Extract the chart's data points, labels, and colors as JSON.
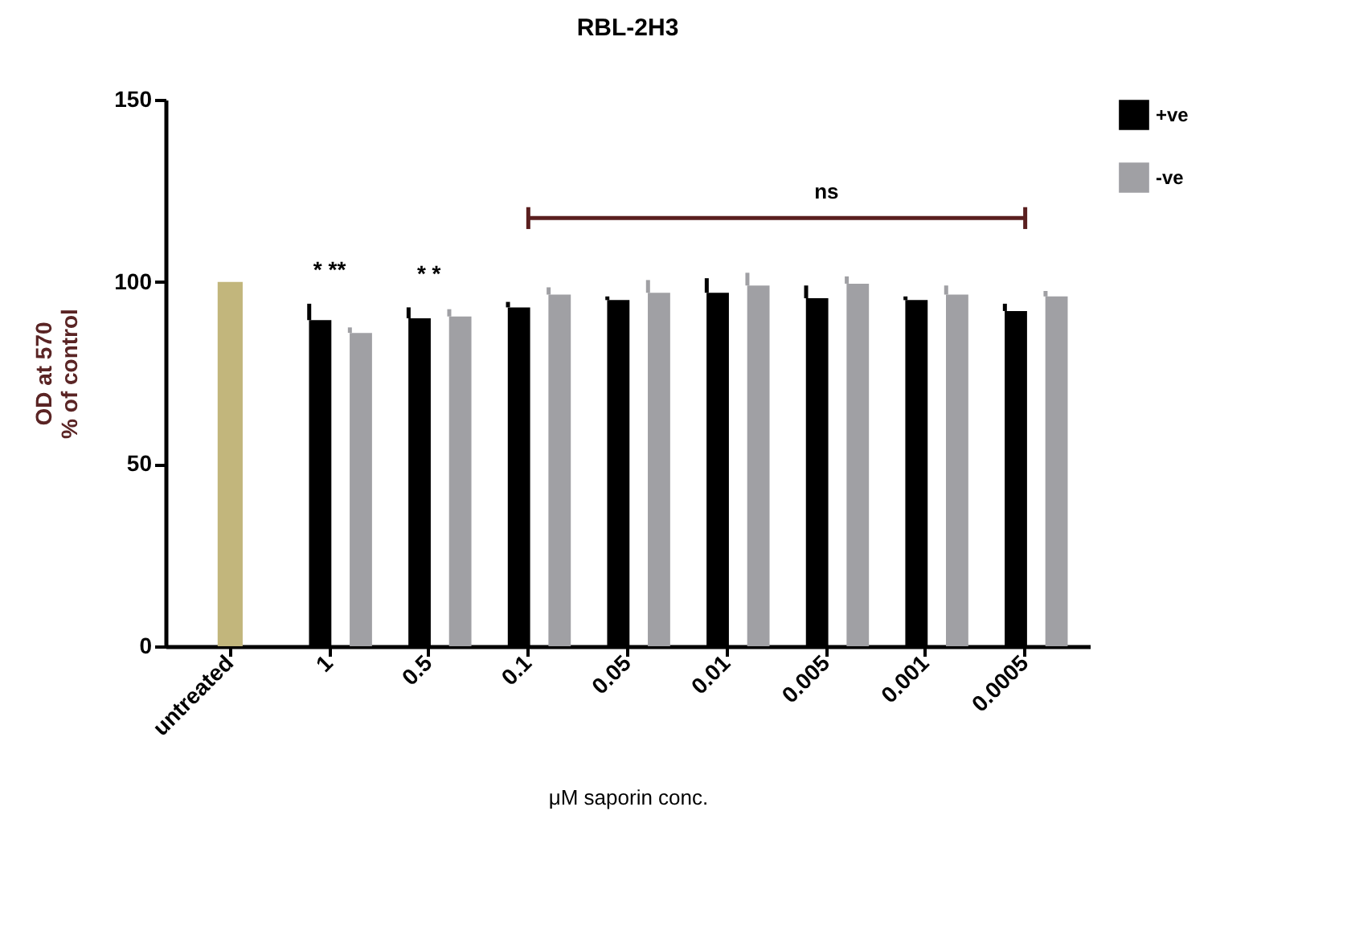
{
  "chart_data": {
    "type": "bar",
    "title": "RBL-2H3",
    "xlabel": "μM saporin conc.",
    "ylabel": "OD at 570\n% of control",
    "categories": [
      "untreated",
      "1",
      "0.5",
      "0.1",
      "0.05",
      "0.01",
      "0.005",
      "0.001",
      "0.0005"
    ],
    "series": [
      {
        "color": "#c2b67c",
        "values": [
          100,
          null,
          null,
          null,
          null,
          null,
          null,
          null,
          null
        ]
      },
      {
        "name": "+ve",
        "color": "#000000",
        "values": [
          null,
          89.5,
          90,
          93,
          95,
          97,
          95.5,
          95,
          92
        ],
        "errors": [
          null,
          [
            89.5,
            94
          ],
          [
            90,
            93
          ],
          [
            93,
            94.5
          ],
          [
            95,
            96
          ],
          [
            97,
            101
          ],
          [
            95.5,
            99
          ],
          [
            95,
            96
          ],
          [
            92,
            94
          ]
        ]
      },
      {
        "name": "-ve",
        "color": "#a0a0a4",
        "values": [
          null,
          86,
          90.5,
          96.5,
          97,
          99,
          99.5,
          96.5,
          96
        ],
        "errors": [
          null,
          [
            86,
            87.5
          ],
          [
            90.5,
            92.5
          ],
          [
            96.5,
            98.5
          ],
          [
            97,
            100.5
          ],
          [
            99,
            102.5
          ],
          [
            99.5,
            101.5
          ],
          [
            96.5,
            99
          ],
          [
            96,
            97.5
          ]
        ]
      }
    ],
    "annotations": [
      "*  **",
      "*    *",
      "ns"
    ],
    "ylim": [
      0,
      150
    ],
    "yticks": [
      0,
      50,
      100,
      150
    ],
    "grid": false,
    "legend": "top right"
  }
}
